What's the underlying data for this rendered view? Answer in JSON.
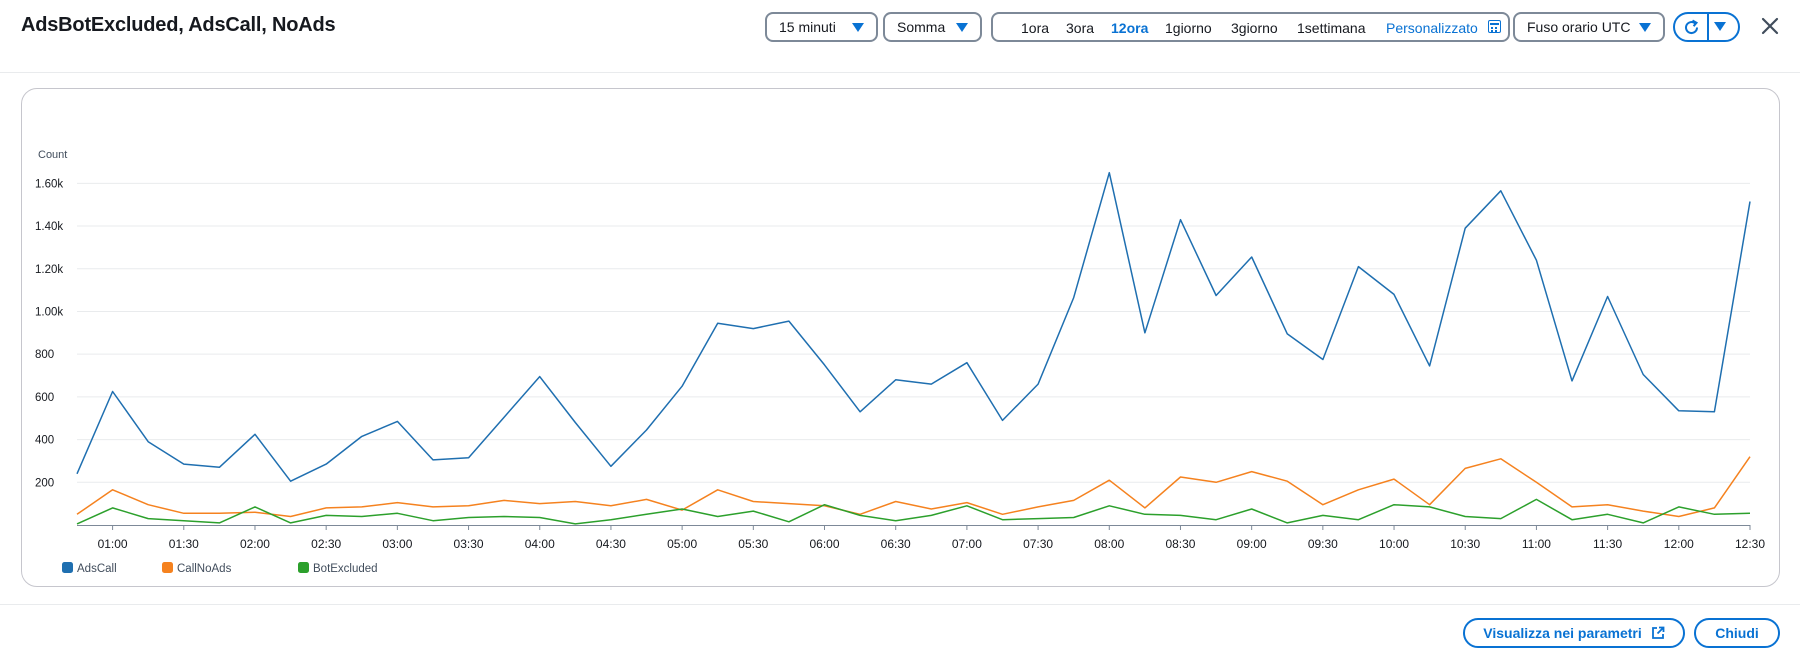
{
  "header": {
    "title": "AdsBotExcluded, AdsCall, NoAds",
    "period": "15 minuti",
    "statistic": "Somma",
    "ranges": [
      "1ora",
      "3ora",
      "12ora",
      "1giorno",
      "3giorno",
      "1settimana"
    ],
    "active_range": "12ora",
    "custom_label": "Personalizzato",
    "timezone": "Fuso orario UTC"
  },
  "footer": {
    "view_metrics_label": "Visualizza nei parametri",
    "close_label": "Chiudi"
  },
  "colors": {
    "AdsCall": "#1f6fb0",
    "CallNoAds": "#f5821f",
    "BotExcluded": "#2ca02c",
    "accent": "#0972d3"
  },
  "chart_data": {
    "type": "line",
    "ylabel": "Count",
    "ylim": [
      0,
      1700
    ],
    "yticks": [
      200,
      400,
      600,
      800,
      1000,
      1200,
      1400,
      1600
    ],
    "ytick_labels": [
      "200",
      "400",
      "600",
      "800",
      "1.00k",
      "1.20k",
      "1.40k",
      "1.60k"
    ],
    "xticks": [
      "01:00",
      "01:30",
      "02:00",
      "02:30",
      "03:00",
      "03:30",
      "04:00",
      "04:30",
      "05:00",
      "05:30",
      "06:00",
      "06:30",
      "07:00",
      "07:30",
      "08:00",
      "08:30",
      "09:00",
      "09:30",
      "10:00",
      "10:30",
      "11:00",
      "11:30",
      "12:00",
      "12:30"
    ],
    "x": [
      "00:45",
      "01:00",
      "01:15",
      "01:30",
      "01:45",
      "02:00",
      "02:15",
      "02:30",
      "02:45",
      "03:00",
      "03:15",
      "03:30",
      "03:45",
      "04:00",
      "04:15",
      "04:30",
      "04:45",
      "05:00",
      "05:15",
      "05:30",
      "05:45",
      "06:00",
      "06:15",
      "06:30",
      "06:45",
      "07:00",
      "07:15",
      "07:30",
      "07:45",
      "08:00",
      "08:15",
      "08:30",
      "08:45",
      "09:00",
      "09:15",
      "09:30",
      "09:45",
      "10:00",
      "10:15",
      "10:30",
      "10:45",
      "11:00",
      "11:15",
      "11:30",
      "11:45",
      "12:00",
      "12:15",
      "12:30"
    ],
    "series": [
      {
        "name": "AdsCall",
        "values": [
          240,
          625,
          390,
          285,
          270,
          425,
          205,
          285,
          415,
          485,
          305,
          315,
          505,
          695,
          480,
          275,
          445,
          650,
          945,
          920,
          955,
          750,
          530,
          680,
          660,
          760,
          490,
          660,
          1065,
          1650,
          900,
          1430,
          1075,
          1255,
          895,
          775,
          1210,
          1080,
          745,
          1390,
          1565,
          1240,
          675,
          1070,
          705,
          535,
          530,
          1515
        ]
      },
      {
        "name": "CallNoAds",
        "values": [
          50,
          165,
          95,
          55,
          55,
          60,
          40,
          80,
          85,
          105,
          85,
          90,
          115,
          100,
          110,
          90,
          120,
          70,
          165,
          110,
          100,
          90,
          50,
          110,
          75,
          105,
          50,
          85,
          115,
          210,
          80,
          225,
          200,
          250,
          205,
          95,
          165,
          215,
          95,
          265,
          310,
          200,
          85,
          95,
          65,
          40,
          80,
          320
        ]
      },
      {
        "name": "BotExcluded",
        "values": [
          5,
          80,
          30,
          20,
          10,
          85,
          10,
          45,
          40,
          55,
          20,
          35,
          40,
          35,
          5,
          25,
          50,
          75,
          40,
          65,
          15,
          95,
          45,
          20,
          45,
          90,
          25,
          30,
          35,
          90,
          50,
          45,
          25,
          75,
          10,
          45,
          25,
          95,
          85,
          40,
          30,
          120,
          25,
          50,
          10,
          85,
          50,
          55
        ]
      }
    ]
  }
}
